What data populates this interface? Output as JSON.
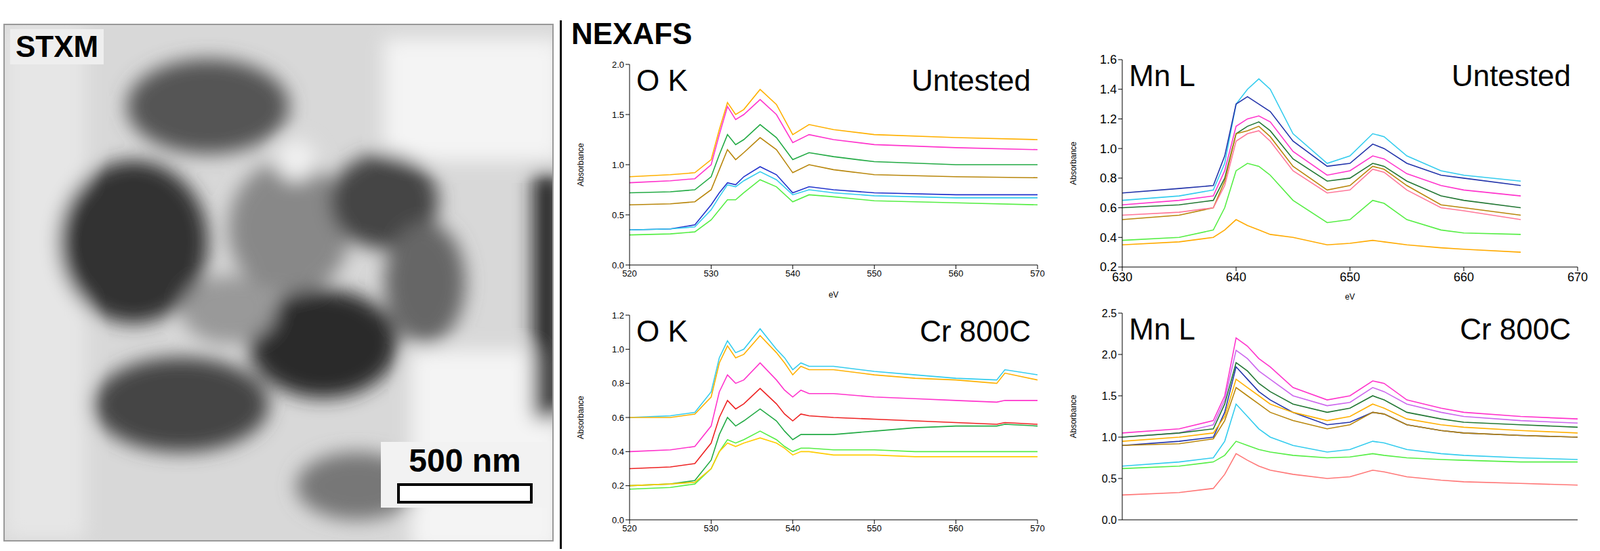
{
  "image": {
    "label": "STXM",
    "scale_bar": "500 nm"
  },
  "section": "NEXAFS",
  "chart_data": [
    {
      "type": "line",
      "title": "O K",
      "subtitle": "Untested",
      "xlabel": "eV",
      "ylabel": "Absorbance",
      "x": [
        520,
        525,
        528,
        530,
        531,
        532,
        533,
        534,
        536,
        538,
        540,
        542,
        545,
        550,
        560,
        570
      ],
      "xlim": [
        520,
        570
      ],
      "xticks": [
        520,
        530,
        540,
        550,
        560,
        570
      ],
      "ylim": [
        0,
        2
      ],
      "yticks": [
        {
          "value": 0,
          "label": "0.0"
        },
        0.5,
        {
          "value": 1,
          "label": "1.0"
        },
        1.5,
        {
          "value": 2,
          "label": "2.0"
        }
      ],
      "series": [
        {
          "color": "#ffb000",
          "values": [
            0.88,
            0.9,
            0.92,
            1.05,
            1.35,
            1.62,
            1.5,
            1.55,
            1.75,
            1.6,
            1.3,
            1.4,
            1.35,
            1.3,
            1.27,
            1.25
          ]
        },
        {
          "color": "#ff33cc",
          "values": [
            0.82,
            0.84,
            0.86,
            1.0,
            1.3,
            1.58,
            1.45,
            1.5,
            1.65,
            1.5,
            1.22,
            1.3,
            1.25,
            1.2,
            1.17,
            1.15
          ]
        },
        {
          "color": "#22aa44",
          "values": [
            0.72,
            0.73,
            0.75,
            0.88,
            1.1,
            1.3,
            1.2,
            1.25,
            1.4,
            1.27,
            1.05,
            1.12,
            1.08,
            1.03,
            1.0,
            1.0
          ]
        },
        {
          "color": "#b8860b",
          "values": [
            0.6,
            0.61,
            0.63,
            0.75,
            0.95,
            1.15,
            1.05,
            1.12,
            1.27,
            1.15,
            0.92,
            1.0,
            0.95,
            0.9,
            0.88,
            0.87
          ]
        },
        {
          "color": "#2233cc",
          "values": [
            0.35,
            0.36,
            0.4,
            0.6,
            0.72,
            0.82,
            0.8,
            0.88,
            0.98,
            0.9,
            0.72,
            0.78,
            0.75,
            0.72,
            0.7,
            0.7
          ]
        },
        {
          "color": "#33ccee",
          "values": [
            0.35,
            0.36,
            0.38,
            0.55,
            0.68,
            0.8,
            0.78,
            0.84,
            0.93,
            0.85,
            0.7,
            0.75,
            0.72,
            0.69,
            0.67,
            0.67
          ]
        },
        {
          "color": "#55ee44",
          "values": [
            0.3,
            0.31,
            0.33,
            0.45,
            0.55,
            0.65,
            0.65,
            0.72,
            0.85,
            0.78,
            0.63,
            0.7,
            0.68,
            0.64,
            0.62,
            0.6
          ]
        }
      ]
    },
    {
      "type": "line",
      "title": "Mn L",
      "subtitle": "Untested",
      "xlabel": "eV",
      "ylabel": "Absorbance",
      "x": [
        630,
        635,
        638,
        639,
        640,
        641,
        642,
        643,
        645,
        648,
        650,
        652,
        653,
        655,
        658,
        660,
        665
      ],
      "xlim": [
        630,
        670
      ],
      "xticks": [
        630,
        640,
        650,
        660,
        670
      ],
      "ylim": [
        0.2,
        1.6
      ],
      "yticks": [
        0.2,
        0.4,
        0.6,
        0.8,
        {
          "value": 1,
          "label": "1.0"
        },
        1.2,
        1.4,
        1.6
      ],
      "series": [
        {
          "color": "#33ccee",
          "values": [
            0.65,
            0.68,
            0.72,
            0.9,
            1.3,
            1.4,
            1.47,
            1.4,
            1.1,
            0.9,
            0.95,
            1.1,
            1.08,
            0.95,
            0.85,
            0.82,
            0.78
          ]
        },
        {
          "color": "#2233aa",
          "values": [
            0.7,
            0.73,
            0.75,
            0.95,
            1.3,
            1.35,
            1.3,
            1.25,
            1.05,
            0.88,
            0.9,
            1.03,
            1.0,
            0.9,
            0.82,
            0.8,
            0.75
          ]
        },
        {
          "color": "#ff33cc",
          "values": [
            0.62,
            0.65,
            0.68,
            0.85,
            1.15,
            1.2,
            1.22,
            1.18,
            0.98,
            0.82,
            0.85,
            0.95,
            0.93,
            0.83,
            0.75,
            0.72,
            0.68
          ]
        },
        {
          "color": "#227733",
          "values": [
            0.6,
            0.62,
            0.65,
            0.8,
            1.1,
            1.15,
            1.18,
            1.12,
            0.93,
            0.78,
            0.8,
            0.9,
            0.88,
            0.78,
            0.68,
            0.65,
            0.6
          ]
        },
        {
          "color": "#b8860b",
          "values": [
            0.52,
            0.55,
            0.6,
            0.78,
            1.1,
            1.12,
            1.15,
            1.08,
            0.88,
            0.72,
            0.75,
            0.88,
            0.86,
            0.75,
            0.62,
            0.6,
            0.55
          ]
        },
        {
          "color": "#ff7799",
          "values": [
            0.55,
            0.57,
            0.6,
            0.75,
            1.05,
            1.1,
            1.12,
            1.05,
            0.85,
            0.7,
            0.72,
            0.86,
            0.84,
            0.72,
            0.6,
            0.58,
            0.52
          ]
        },
        {
          "color": "#55ee44",
          "values": [
            0.38,
            0.4,
            0.45,
            0.6,
            0.85,
            0.9,
            0.88,
            0.82,
            0.65,
            0.5,
            0.52,
            0.65,
            0.63,
            0.52,
            0.45,
            0.43,
            0.42
          ]
        },
        {
          "color": "#ffaa00",
          "values": [
            0.35,
            0.37,
            0.4,
            0.45,
            0.52,
            0.48,
            0.45,
            0.42,
            0.4,
            0.35,
            0.36,
            0.38,
            0.37,
            0.35,
            0.33,
            0.32,
            0.3
          ]
        }
      ]
    },
    {
      "type": "line",
      "title": "O K",
      "subtitle": "Cr 800C",
      "ylabel": "Absorbance",
      "x": [
        520,
        525,
        528,
        530,
        531,
        532,
        533,
        534,
        536,
        538,
        539,
        540,
        541,
        542,
        545,
        550,
        555,
        560,
        565,
        566,
        570
      ],
      "xlim": [
        520,
        570
      ],
      "xticks": [
        520,
        530,
        540,
        550,
        560,
        570
      ],
      "ylim": [
        0,
        1.2
      ],
      "yticks": [
        {
          "value": 0,
          "label": "0.0"
        },
        0.2,
        0.4,
        0.6,
        0.8,
        {
          "value": 1,
          "label": "1.0"
        },
        1.2
      ],
      "series": [
        {
          "color": "#33ccee",
          "values": [
            0.6,
            0.61,
            0.63,
            0.75,
            0.95,
            1.05,
            0.98,
            1.0,
            1.12,
            1.0,
            0.95,
            0.88,
            0.92,
            0.9,
            0.9,
            0.87,
            0.85,
            0.83,
            0.82,
            0.88,
            0.85
          ]
        },
        {
          "color": "#ffb000",
          "values": [
            0.6,
            0.6,
            0.62,
            0.72,
            0.92,
            1.02,
            0.95,
            0.97,
            1.08,
            0.98,
            0.92,
            0.85,
            0.9,
            0.88,
            0.88,
            0.85,
            0.83,
            0.82,
            0.8,
            0.86,
            0.82
          ]
        },
        {
          "color": "#ff33cc",
          "values": [
            0.4,
            0.41,
            0.43,
            0.55,
            0.75,
            0.85,
            0.8,
            0.82,
            0.92,
            0.82,
            0.76,
            0.72,
            0.76,
            0.74,
            0.74,
            0.72,
            0.71,
            0.7,
            0.69,
            0.7,
            0.7
          ]
        },
        {
          "color": "#ee2222",
          "values": [
            0.3,
            0.31,
            0.33,
            0.45,
            0.6,
            0.7,
            0.65,
            0.68,
            0.77,
            0.68,
            0.62,
            0.58,
            0.62,
            0.61,
            0.6,
            0.59,
            0.58,
            0.57,
            0.56,
            0.57,
            0.56
          ]
        },
        {
          "color": "#22aa44",
          "values": [
            0.2,
            0.21,
            0.23,
            0.35,
            0.5,
            0.6,
            0.55,
            0.58,
            0.65,
            0.58,
            0.52,
            0.47,
            0.5,
            0.5,
            0.5,
            0.52,
            0.54,
            0.55,
            0.55,
            0.56,
            0.55
          ]
        },
        {
          "color": "#55ee44",
          "values": [
            0.18,
            0.19,
            0.21,
            0.3,
            0.4,
            0.47,
            0.45,
            0.47,
            0.52,
            0.47,
            0.43,
            0.4,
            0.42,
            0.42,
            0.41,
            0.41,
            0.4,
            0.4,
            0.4,
            0.4,
            0.4
          ]
        },
        {
          "color": "#ffcc00",
          "values": [
            0.2,
            0.21,
            0.22,
            0.3,
            0.4,
            0.45,
            0.43,
            0.45,
            0.48,
            0.45,
            0.42,
            0.38,
            0.4,
            0.4,
            0.38,
            0.38,
            0.37,
            0.37,
            0.37,
            0.37,
            0.37
          ]
        }
      ]
    },
    {
      "type": "line",
      "title": "Mn L",
      "subtitle": "Cr 800C",
      "ylabel": "Absorbance",
      "tick_labels": "y",
      "x": [
        630,
        635,
        638,
        639,
        640,
        641,
        642,
        643,
        645,
        648,
        650,
        652,
        653,
        655,
        658,
        660,
        665,
        670
      ],
      "xlim": [
        630,
        670
      ],
      "xticks": [
        630,
        640,
        650,
        660,
        670
      ],
      "ylim": [
        0,
        2.5
      ],
      "yticks": [
        {
          "value": 0,
          "label": "0.0"
        },
        0.5,
        {
          "value": 1,
          "label": "1.0"
        },
        1.5,
        {
          "value": 2,
          "label": "2.0"
        },
        2.5
      ],
      "series": [
        {
          "color": "#ff33cc",
          "values": [
            1.05,
            1.1,
            1.2,
            1.5,
            2.2,
            2.1,
            1.95,
            1.85,
            1.6,
            1.45,
            1.5,
            1.68,
            1.65,
            1.45,
            1.35,
            1.3,
            1.25,
            1.22
          ]
        },
        {
          "color": "#cc66ee",
          "values": [
            1.0,
            1.05,
            1.15,
            1.45,
            2.05,
            1.95,
            1.8,
            1.7,
            1.5,
            1.38,
            1.42,
            1.6,
            1.55,
            1.4,
            1.3,
            1.25,
            1.2,
            1.17
          ]
        },
        {
          "color": "#227733",
          "values": [
            1.0,
            1.05,
            1.1,
            1.4,
            1.9,
            1.8,
            1.65,
            1.55,
            1.4,
            1.3,
            1.35,
            1.5,
            1.45,
            1.3,
            1.22,
            1.18,
            1.15,
            1.12
          ]
        },
        {
          "color": "#2233aa",
          "values": [
            0.9,
            0.95,
            1.0,
            1.3,
            1.85,
            1.7,
            1.55,
            1.45,
            1.3,
            1.15,
            1.18,
            1.3,
            1.28,
            1.15,
            1.08,
            1.05,
            1.02,
            1.0
          ]
        },
        {
          "color": "#ffb000",
          "values": [
            0.95,
            1.0,
            1.05,
            1.25,
            1.7,
            1.6,
            1.5,
            1.4,
            1.3,
            1.2,
            1.25,
            1.4,
            1.35,
            1.22,
            1.15,
            1.12,
            1.08,
            1.05
          ]
        },
        {
          "color": "#b8860b",
          "values": [
            0.9,
            0.92,
            0.98,
            1.2,
            1.6,
            1.5,
            1.4,
            1.3,
            1.2,
            1.1,
            1.15,
            1.3,
            1.28,
            1.15,
            1.08,
            1.05,
            1.02,
            1.0
          ]
        },
        {
          "color": "#33ccee",
          "values": [
            0.65,
            0.7,
            0.75,
            0.95,
            1.4,
            1.25,
            1.1,
            1.0,
            0.9,
            0.82,
            0.85,
            0.95,
            0.93,
            0.85,
            0.8,
            0.78,
            0.75,
            0.73
          ]
        },
        {
          "color": "#55ee44",
          "values": [
            0.62,
            0.65,
            0.7,
            0.78,
            0.95,
            0.9,
            0.85,
            0.82,
            0.78,
            0.75,
            0.76,
            0.8,
            0.78,
            0.75,
            0.73,
            0.72,
            0.7,
            0.7
          ]
        },
        {
          "color": "#ff7777",
          "values": [
            0.3,
            0.33,
            0.38,
            0.55,
            0.8,
            0.72,
            0.65,
            0.6,
            0.55,
            0.5,
            0.52,
            0.6,
            0.58,
            0.52,
            0.48,
            0.46,
            0.44,
            0.42
          ]
        }
      ]
    }
  ]
}
